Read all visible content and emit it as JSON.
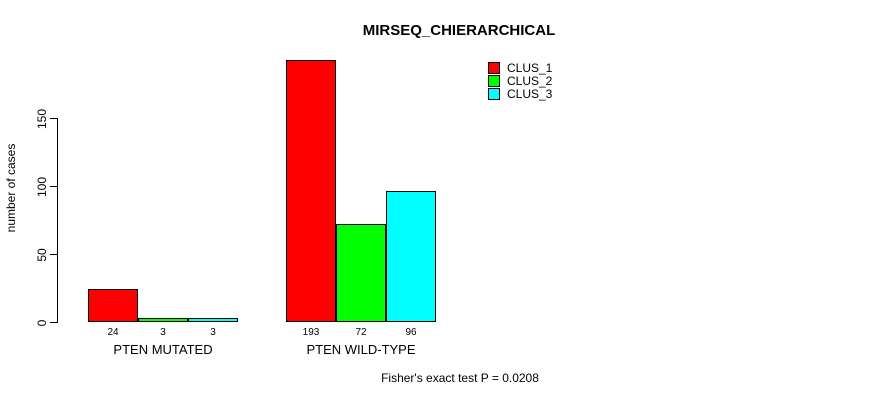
{
  "chart_data": {
    "type": "bar",
    "title": "MIRSEQ_CHIERARCHICAL",
    "ylabel": "number of cases",
    "xlabel": "",
    "categories": [
      "PTEN MUTATED",
      "PTEN WILD-TYPE"
    ],
    "series": [
      {
        "name": "CLUS_1",
        "color": "#ff0000",
        "values": [
          24,
          193
        ]
      },
      {
        "name": "CLUS_2",
        "color": "#00ff00",
        "values": [
          3,
          72
        ]
      },
      {
        "name": "CLUS_3",
        "color": "#00ffff",
        "values": [
          3,
          96
        ]
      }
    ],
    "yticks": [
      0,
      50,
      100,
      150
    ],
    "ylim": [
      0,
      150
    ],
    "grid": false,
    "legend_position": "top-right",
    "annotation": "Fisher's exact test P = 0.0208"
  },
  "colors": {
    "clus_1": "#ff0000",
    "clus_2": "#00ff00",
    "clus_3": "#00ffff",
    "axis": "#000000",
    "background": "#ffffff"
  }
}
